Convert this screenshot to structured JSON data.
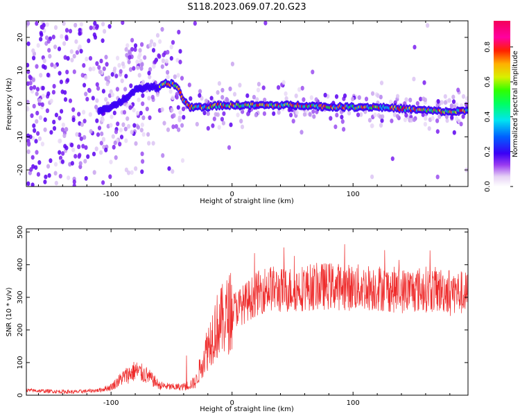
{
  "title": "S118.2023.069.07.20.G23",
  "chart_data": [
    {
      "type": "heatmap",
      "xlabel": "Height of straight line (km)",
      "ylabel": "Frequency (Hz)",
      "xlim": [
        -170,
        195
      ],
      "ylim": [
        -25,
        25
      ],
      "xticks": [
        -100,
        0,
        100
      ],
      "yticks": [
        -20,
        -10,
        0,
        10,
        20
      ],
      "colorbar": {
        "label": "Normalized spectral amplitude",
        "range": [
          0,
          0.95
        ],
        "ticks": [
          "0.0",
          "0.2",
          "0.4",
          "0.6",
          "0.8"
        ],
        "colormap": "gist_ncar-like (white/purple/blue/cyan/green/yellow/red/pink)"
      },
      "ridge": {
        "description": "dominant frequency track vs height",
        "x": [
          -110,
          -100,
          -90,
          -80,
          -70,
          -60,
          -55,
          -50,
          -45,
          -40,
          -35,
          -30,
          -20,
          -10,
          0,
          20,
          40,
          60,
          80,
          100,
          120,
          140,
          160,
          180,
          195
        ],
        "y": [
          -2,
          -1,
          1,
          4,
          5,
          5,
          6,
          6,
          5,
          1,
          -1,
          -1,
          -1,
          -0.5,
          -0.5,
          -0.5,
          -0.5,
          -0.5,
          -1,
          -1,
          -1,
          -1.5,
          -2,
          -2.5,
          -2
        ]
      }
    },
    {
      "type": "line",
      "xlabel": "Height of straight line (km)",
      "ylabel": "SNR (10 * v/v)",
      "xlim": [
        -170,
        195
      ],
      "ylim": [
        0,
        510
      ],
      "xticks": [
        -100,
        0,
        100
      ],
      "yticks": [
        0,
        100,
        200,
        300,
        400,
        500
      ],
      "series": [
        {
          "color": "#ee2a2a",
          "x": [
            -170,
            -150,
            -130,
            -110,
            -100,
            -90,
            -80,
            -70,
            -60,
            -50,
            -40,
            -30,
            -25,
            -20,
            -15,
            -10,
            -5,
            0,
            10,
            20,
            30,
            40,
            60,
            80,
            100,
            120,
            140,
            160,
            180,
            195
          ],
          "y": [
            15,
            12,
            10,
            15,
            25,
            55,
            75,
            60,
            30,
            25,
            25,
            40,
            100,
            150,
            200,
            220,
            240,
            260,
            280,
            310,
            330,
            320,
            330,
            335,
            330,
            330,
            320,
            325,
            320,
            310
          ]
        }
      ]
    }
  ]
}
